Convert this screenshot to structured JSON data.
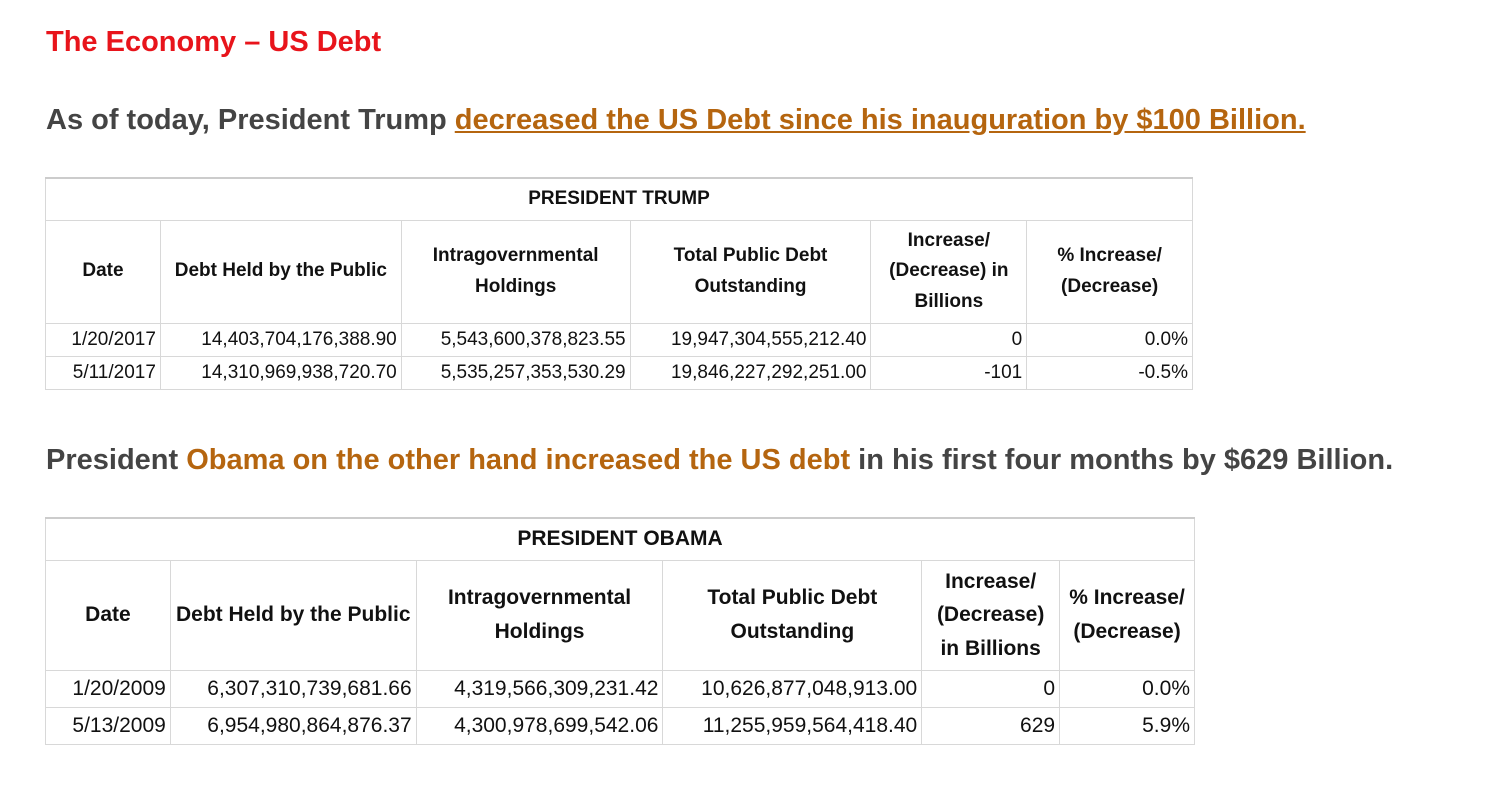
{
  "header": {
    "title": "The Economy – US Debt"
  },
  "intro": {
    "text": "As of today, President Trump ",
    "link": "decreased the US Debt since his inauguration by $100 Billion. "
  },
  "trump_table": {
    "title": "PRESIDENT TRUMP",
    "columns": [
      "Date",
      "Debt Held by the Public",
      "Intragovernmental Holdings",
      "Total Public Debt Outstanding",
      "Increase/ (Decrease) in Billions",
      "% Increase/ (Decrease)"
    ],
    "rows": [
      [
        "1/20/2017",
        "14,403,704,176,388.90",
        "5,543,600,378,823.55",
        "19,947,304,555,212.40",
        "0",
        "0.0%"
      ],
      [
        "5/11/2017",
        "14,310,969,938,720.70",
        "5,535,257,353,530.29",
        "19,846,227,292,251.00",
        "-101",
        "-0.5%"
      ]
    ]
  },
  "obama_intro": {
    "before": "President ",
    "highlight": "Obama on the other hand increased the US debt",
    "after": " in his first four months by $629 Billion."
  },
  "obama_table": {
    "title": "PRESIDENT OBAMA",
    "columns": [
      "Date",
      "Debt Held by the Public",
      "Intragovernmental Holdings",
      "Total Public Debt Outstanding",
      "Increase/ (Decrease) in Billions",
      "% Increase/ (Decrease)"
    ],
    "rows": [
      [
        "1/20/2009",
        "6,307,310,739,681.66",
        "4,319,566,309,231.42",
        "10,626,877,048,913.00",
        "0",
        "0.0%"
      ],
      [
        "5/13/2009",
        "6,954,980,864,876.37",
        "4,300,978,699,542.06",
        "11,255,959,564,418.40",
        "629",
        "5.9%"
      ]
    ]
  }
}
